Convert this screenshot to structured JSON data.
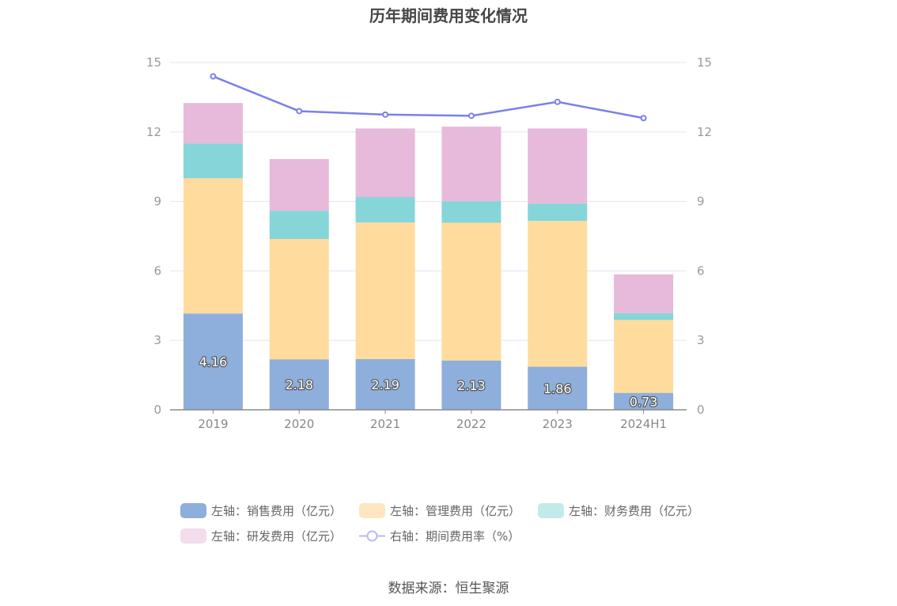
{
  "chart_data": {
    "type": "bar",
    "title": "历年期间费用变化情况",
    "categories": [
      "2019",
      "2020",
      "2021",
      "2022",
      "2023",
      "2024H1"
    ],
    "stacked": true,
    "left_axis": {
      "ylim": [
        0,
        15
      ],
      "ticks": [
        0,
        3,
        6,
        9,
        12,
        15
      ]
    },
    "right_axis": {
      "ylim": [
        0,
        15
      ],
      "ticks": [
        0,
        3,
        6,
        9,
        12,
        15
      ]
    },
    "grid": true,
    "legend_position": "bottom",
    "series": [
      {
        "name": "左轴：销售费用（亿元）",
        "type": "bar",
        "axis": "left",
        "color": "#8eaedb",
        "values": [
          4.16,
          2.18,
          2.19,
          2.13,
          1.86,
          0.73
        ],
        "labels": [
          "4.16",
          "2.18",
          "2.19",
          "2.13",
          "1.86",
          "0.73"
        ]
      },
      {
        "name": "左轴：管理费用（亿元）",
        "type": "bar",
        "axis": "left",
        "color": "#ffdb9e",
        "values": [
          5.84,
          5.2,
          5.9,
          5.95,
          6.3,
          3.15
        ]
      },
      {
        "name": "左轴：财务费用（亿元）",
        "type": "bar",
        "axis": "left",
        "color": "#86d5d8",
        "values": [
          1.5,
          1.22,
          1.1,
          0.93,
          0.75,
          0.3
        ]
      },
      {
        "name": "左轴：研发费用（亿元）",
        "type": "bar",
        "axis": "left",
        "color": "#e7b9da",
        "values": [
          1.75,
          2.23,
          2.96,
          3.22,
          3.24,
          1.67
        ]
      },
      {
        "name": "右轴：期间费用率（%）",
        "type": "line",
        "axis": "right",
        "color": "#7b80e8",
        "values": [
          14.4,
          12.9,
          12.75,
          12.7,
          13.3,
          12.6
        ]
      }
    ]
  },
  "legend": {
    "items": [
      {
        "label": "左轴：销售费用（亿元）",
        "color": "#8eaedb",
        "kind": "swatch"
      },
      {
        "label": "左轴：管理费用（亿元）",
        "color": "#fde6c0",
        "kind": "swatch"
      },
      {
        "label": "左轴：财务费用（亿元）",
        "color": "#c3eaeb",
        "kind": "swatch"
      },
      {
        "label": "左轴：研发费用（亿元）",
        "color": "#f3dcec",
        "kind": "swatch"
      },
      {
        "label": "右轴：期间费用率（%）",
        "color": "#b8bbf2",
        "kind": "line"
      }
    ]
  },
  "source": "数据来源：恒生聚源"
}
